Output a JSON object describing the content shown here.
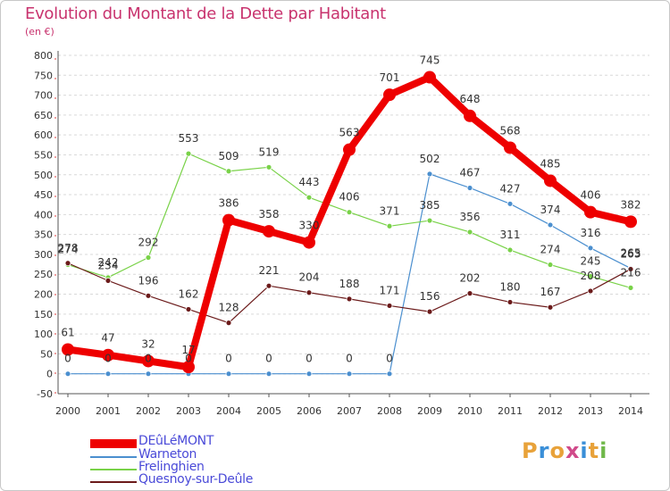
{
  "title": "Evolution du Montant de la Dette par Habitant",
  "subtitle": "(en €)",
  "logo_text": "Proxiti",
  "chart_data": {
    "type": "line",
    "title": "Evolution du Montant de la Dette par Habitant",
    "subtitle": "(en €)",
    "xlabel": "",
    "ylabel": "",
    "x": [
      "2000",
      "2001",
      "2002",
      "2003",
      "2004",
      "2005",
      "2006",
      "2007",
      "2008",
      "2009",
      "2010",
      "2011",
      "2012",
      "2013",
      "2014"
    ],
    "ylim": [
      -50,
      800
    ],
    "yticks": [
      -50,
      0,
      50,
      100,
      150,
      200,
      250,
      300,
      350,
      400,
      450,
      500,
      550,
      600,
      650,
      700,
      750,
      800
    ],
    "grid": "horizontal dashed",
    "legend_position": "bottom",
    "series": [
      {
        "name": "DEûLéMONT",
        "color": "#ee0000",
        "values": [
          61,
          47,
          32,
          17,
          386,
          358,
          330,
          563,
          701,
          745,
          648,
          568,
          485,
          406,
          382
        ]
      },
      {
        "name": "Warneton",
        "color": "#4b8fcf",
        "values": [
          0,
          0,
          0,
          0,
          0,
          0,
          0,
          0,
          0,
          502,
          467,
          427,
          374,
          316,
          265
        ]
      },
      {
        "name": "Frelinghien",
        "color": "#79d248",
        "values": [
          274,
          242,
          292,
          553,
          509,
          519,
          443,
          406,
          371,
          385,
          356,
          311,
          274,
          245,
          216
        ]
      },
      {
        "name": "Quesnoy-sur-Deûle",
        "color": "#6b1a1a",
        "values": [
          278,
          234,
          196,
          162,
          128,
          221,
          204,
          188,
          171,
          156,
          202,
          180,
          167,
          208,
          263
        ]
      }
    ]
  }
}
